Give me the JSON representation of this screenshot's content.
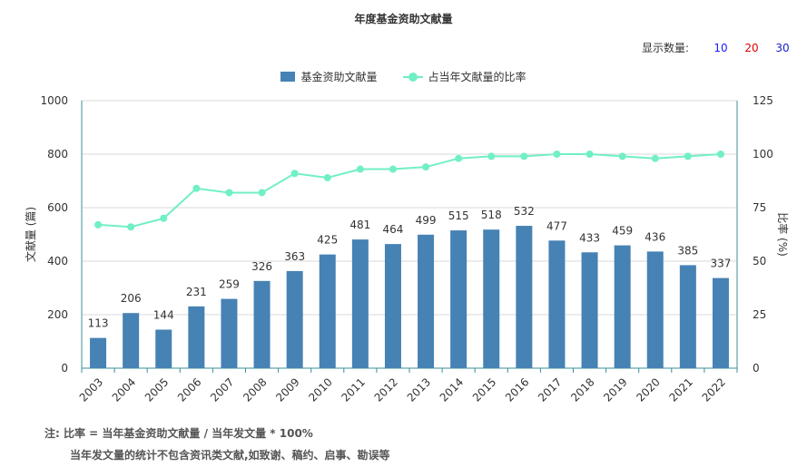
{
  "title": "年度基金资助文献量",
  "display_count": {
    "label": "显示数量:",
    "options": [
      "10",
      "20",
      "30"
    ]
  },
  "colors": {
    "bar": "#4682b4",
    "line": "#71efc6",
    "axis": "#3a8f9a",
    "grid": "#d9d9d9"
  },
  "chart_data": {
    "type": "bar+line",
    "categories": [
      "2003",
      "2004",
      "2005",
      "2006",
      "2007",
      "2008",
      "2009",
      "2010",
      "2011",
      "2012",
      "2013",
      "2014",
      "2015",
      "2016",
      "2017",
      "2018",
      "2019",
      "2020",
      "2021",
      "2022"
    ],
    "series": [
      {
        "name": "基金资助文献量",
        "type": "bar",
        "axis": "left",
        "values": [
          113,
          206,
          144,
          231,
          259,
          326,
          363,
          425,
          481,
          464,
          499,
          515,
          518,
          532,
          477,
          433,
          459,
          436,
          385,
          337
        ]
      },
      {
        "name": "占当年文献量的比率",
        "type": "line",
        "axis": "right",
        "values": [
          67,
          66,
          70,
          84,
          82,
          82,
          91,
          89,
          93,
          93,
          94,
          98,
          99,
          99,
          100,
          100,
          99,
          98,
          99,
          100
        ]
      }
    ],
    "ylabel": "文献量 (篇)",
    "y2label": "比率 (%)",
    "ylim": [
      0,
      1000
    ],
    "yticks": [
      0,
      200,
      400,
      600,
      800,
      1000
    ],
    "y2lim": [
      0,
      125
    ],
    "y2ticks": [
      0,
      25,
      50,
      75,
      100,
      125
    ],
    "grid": true,
    "legend": "top-center"
  },
  "notes": {
    "line1": "注:  比率 = 当年基金资助文献量 / 当年发文量 * 100%",
    "line2": "当年发文量的统计不包含资讯类文献,如致谢、稿约、启事、勘误等"
  }
}
